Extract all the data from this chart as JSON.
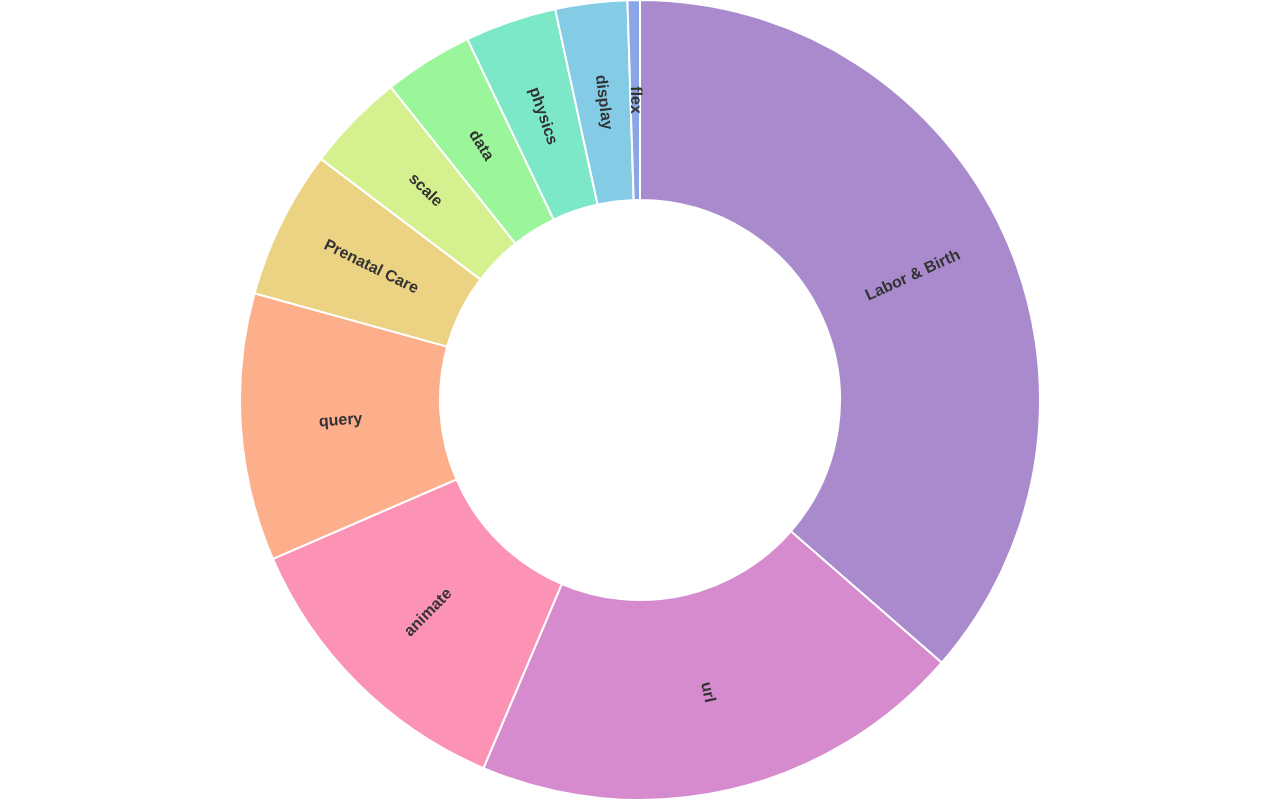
{
  "chart_data": {
    "type": "donut",
    "categories": [
      "Labor & Birth",
      "url",
      "animate",
      "query",
      "Prenatal Care",
      "scale",
      "data",
      "physics",
      "display",
      "flex"
    ],
    "values": [
      36.4,
      20,
      12.1,
      10.8,
      6,
      4,
      3.6,
      3.7,
      2.9,
      0.5
    ],
    "colors": [
      "#a98bcd",
      "#d58bcd",
      "#fd93b4",
      "#fdaf8c",
      "#ecd383",
      "#d5f08f",
      "#9bf59b",
      "#7de8c8",
      "#84cbe6",
      "#8aa6e6"
    ]
  }
}
